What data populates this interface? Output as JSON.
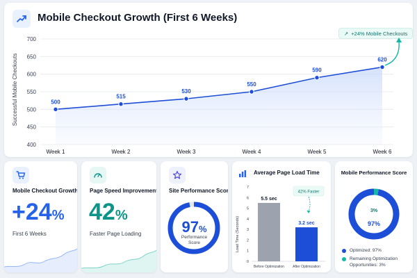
{
  "header": {
    "title": "Mobile Checkout Growth (First 6 Weeks)",
    "title_icon": "trending-up-icon",
    "badge": "+24% Mobile Checkouts"
  },
  "chart_data": {
    "type": "area",
    "title": "Mobile Checkout Growth (First 6 Weeks)",
    "xlabel": "",
    "ylabel": "Successful Mobile Checkouts",
    "categories": [
      "Week 1",
      "Week 2",
      "Week 3",
      "Week 4",
      "Week 5",
      "Week 6"
    ],
    "values": [
      500,
      515,
      530,
      550,
      590,
      620
    ],
    "ylim": [
      400,
      700
    ],
    "yticks": [
      400,
      450,
      500,
      550,
      600,
      650,
      700
    ],
    "grid": true,
    "annotation": "+24% Mobile Checkouts"
  },
  "cards": {
    "growth": {
      "label": "Mobile Checkout Growth",
      "value": "+24",
      "unit": "%",
      "sub": "First 6 Weeks",
      "icon": "cart-icon",
      "color": "#2563eb"
    },
    "speed": {
      "label": "Page Speed Improvement",
      "value": "42",
      "unit": "%",
      "sub": "Faster Page Loading",
      "icon": "gauge-icon",
      "color": "#0d9488"
    },
    "performance": {
      "label": "Site Performance Score",
      "value": "97",
      "unit": "%",
      "sub_line1": "Performance",
      "sub_line2": "Score",
      "icon": "star-icon",
      "score": 0.97,
      "color": "#1d4ed8"
    },
    "load": {
      "label": "Average Page Load Time",
      "ylabel": "Load Time (Seconds)",
      "bars": [
        {
          "name": "Before Optimization",
          "value": 5.5,
          "label": "5.5 sec",
          "color": "#9ca3af"
        },
        {
          "name": "After Optimization",
          "value": 3.2,
          "label": "3.2 sec",
          "color": "#1d4ed8"
        }
      ],
      "ylim": [
        0,
        7
      ],
      "yticks": [
        0,
        1,
        2,
        3,
        4,
        5,
        6,
        7
      ],
      "callout": "42% Faster",
      "icon": "bar-chart-icon"
    },
    "mobile_score": {
      "title": "Mobile Performance Score",
      "center": "97%",
      "remaining_label": "3%",
      "optimized": 0.97,
      "legend": [
        {
          "text": "Optimized: 97%",
          "color": "#1d4ed8"
        },
        {
          "text": "Remaining Optimization Opportunities: 3%",
          "color": "#14b8a6"
        }
      ]
    }
  }
}
